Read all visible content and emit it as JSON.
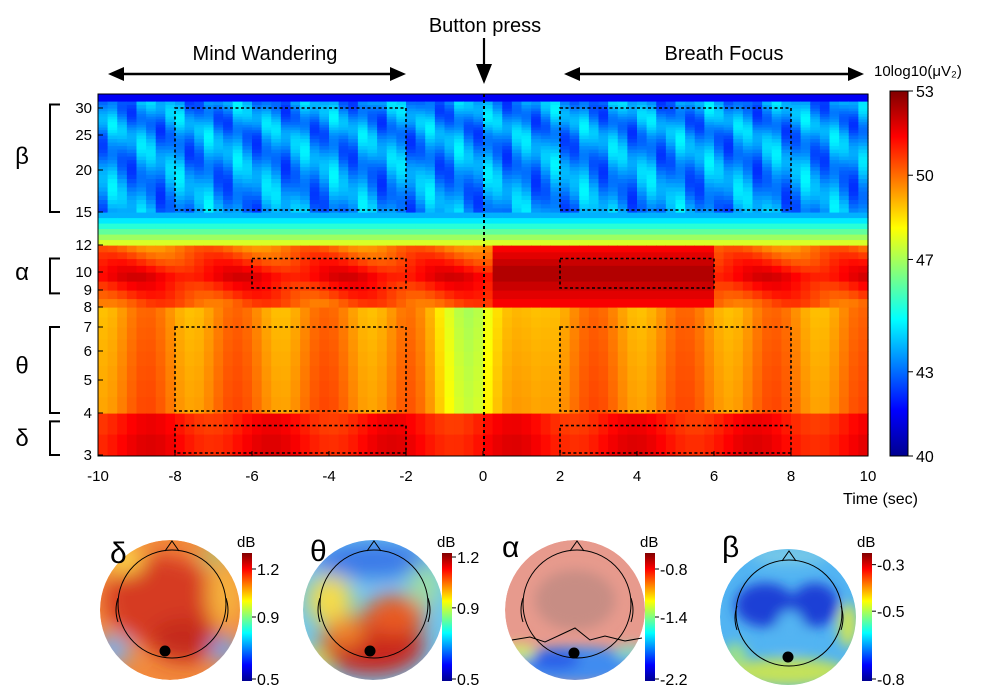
{
  "annotations": {
    "button_press": "Button press",
    "mind_wandering": "Mind Wandering",
    "breath_focus": "Breath Focus"
  },
  "chart_data": [
    {
      "type": "heatmap",
      "title": "",
      "xlabel": "Time (sec)",
      "ylabel": "",
      "colorbar_label": "10log10(μV₂)",
      "xlim": [
        -10,
        10
      ],
      "x_ticks": [
        "-10",
        "-8",
        "-6",
        "-4",
        "-2",
        "0",
        "2",
        "4",
        "6",
        "8",
        "10"
      ],
      "x_tick_values": [
        -10,
        -8,
        -6,
        -4,
        -2,
        0,
        2,
        4,
        6,
        8,
        10
      ],
      "y_range_hz": [
        3,
        32
      ],
      "y_ticks": [
        "30",
        "25",
        "20",
        "15",
        "12",
        "10",
        "9",
        "8",
        "7",
        "6",
        "5",
        "4",
        "3"
      ],
      "y_tick_values": [
        30,
        25,
        20,
        15,
        12,
        10,
        9,
        8,
        7,
        6,
        5,
        4,
        3
      ],
      "colorbar_range": [
        40,
        53
      ],
      "colorbar_ticks": [
        "53",
        "50",
        "47",
        "43",
        "40"
      ],
      "colorbar_tick_values": [
        53,
        50,
        47,
        43,
        40
      ],
      "bands": [
        {
          "symbol": "β",
          "range_hz": [
            15,
            30
          ]
        },
        {
          "symbol": "α",
          "range_hz": [
            9,
            10
          ]
        },
        {
          "symbol": "θ",
          "range_hz": [
            4,
            7
          ]
        },
        {
          "symbol": "δ",
          "range_hz": [
            3,
            3.5
          ]
        }
      ],
      "event_marker_time": 0,
      "analysis_windows": [
        {
          "band": "beta",
          "t": [
            -8,
            -2
          ],
          "hz": [
            15,
            30
          ]
        },
        {
          "band": "beta",
          "t": [
            2,
            8
          ],
          "hz": [
            15,
            30
          ]
        },
        {
          "band": "alpha",
          "t": [
            -6,
            -2
          ],
          "hz": [
            9,
            11
          ]
        },
        {
          "band": "alpha",
          "t": [
            2,
            6
          ],
          "hz": [
            9,
            11
          ]
        },
        {
          "band": "theta",
          "t": [
            -8,
            -2
          ],
          "hz": [
            4,
            7
          ]
        },
        {
          "band": "theta",
          "t": [
            2,
            8
          ],
          "hz": [
            4,
            7
          ]
        },
        {
          "band": "delta",
          "t": [
            -8,
            -2
          ],
          "hz": [
            3,
            3.7
          ]
        },
        {
          "band": "delta",
          "t": [
            2,
            8
          ],
          "hz": [
            3,
            3.7
          ]
        }
      ],
      "approx_power_profile_db": {
        "beta_15_30": 43.5,
        "low_beta_12_15": 46.5,
        "alpha_9_11": 51.5,
        "alpha_after_button_press": 52.5,
        "theta_4_7": 49.5,
        "delta_3_4": 51.0
      }
    },
    {
      "type": "topomap",
      "band": "δ",
      "unit": "dB",
      "range": [
        0.5,
        1.3
      ],
      "ticks": [
        "1.2",
        "0.9",
        "0.5"
      ],
      "tick_values": [
        1.2,
        0.9,
        0.5
      ]
    },
    {
      "type": "topomap",
      "band": "θ",
      "unit": "dB",
      "range": [
        0.5,
        1.2
      ],
      "ticks": [
        "1.2",
        "0.9",
        "0.5"
      ],
      "tick_values": [
        1.2,
        0.9,
        0.5
      ]
    },
    {
      "type": "topomap",
      "band": "α",
      "unit": "dB",
      "range": [
        -2.2,
        -0.6
      ],
      "ticks": [
        "-0.8",
        "-1.4",
        "-2.2"
      ],
      "tick_values": [
        -0.8,
        -1.4,
        -2.2
      ]
    },
    {
      "type": "topomap",
      "band": "β",
      "unit": "dB",
      "range": [
        -0.8,
        -0.25
      ],
      "ticks": [
        "-0.3",
        "-0.5",
        "-0.8"
      ],
      "tick_values": [
        -0.3,
        -0.5,
        -0.8
      ]
    }
  ]
}
